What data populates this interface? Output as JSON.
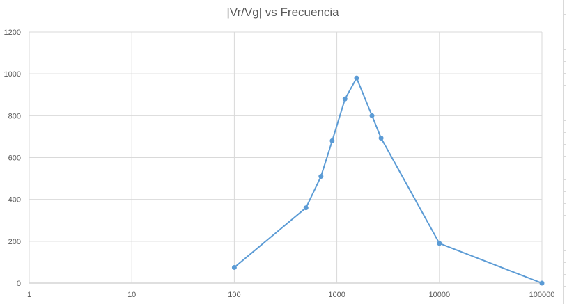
{
  "chart_data": {
    "type": "line",
    "title": "|Vr/Vg| vs Frecuencia",
    "xlabel": "",
    "ylabel": "",
    "x_scale": "log",
    "xlim": [
      1,
      100000
    ],
    "ylim": [
      0,
      1200
    ],
    "x_ticks": [
      "1",
      "10",
      "100",
      "1000",
      "10000",
      "100000"
    ],
    "y_ticks": [
      "0",
      "200",
      "400",
      "600",
      "800",
      "1000",
      "1200"
    ],
    "grid": true,
    "legend": "none",
    "series": [
      {
        "color": "#5b9bd5",
        "x": [
          100,
          500,
          700,
          900,
          1200,
          1560,
          2200,
          2700,
          10000,
          100000
        ],
        "y": [
          75,
          360,
          510,
          680,
          880,
          980,
          800,
          693,
          190,
          0
        ]
      }
    ]
  }
}
